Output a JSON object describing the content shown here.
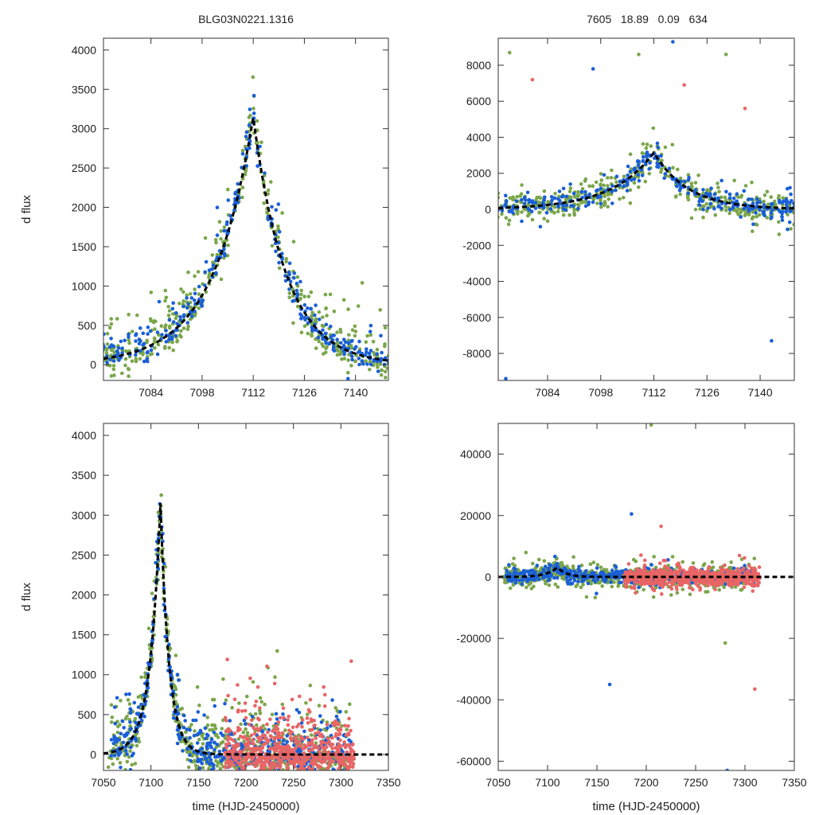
{
  "figure": {
    "left_title": "BLG03N0221.1316",
    "right_title": "7605   18.89   0.09   634"
  },
  "colors": {
    "green": "#7ba64a",
    "blue": "#1a5fd6",
    "red": "#e86565",
    "model": "#000000"
  },
  "chart_data": [
    {
      "id": "top-left",
      "type": "scatter",
      "title": "BLG03N0221.1316",
      "xlabel": "",
      "ylabel": "d flux",
      "xlim": [
        7071,
        7149
      ],
      "ylim": [
        -200,
        4150
      ],
      "xticks": [
        7084,
        7098,
        7112,
        7126,
        7140
      ],
      "yticks": [
        0,
        500,
        1000,
        1500,
        2000,
        2500,
        3000,
        3500,
        4000
      ],
      "peak_t": 7112,
      "peak_flux": 3150,
      "series": [
        {
          "name": "green",
          "color": "green",
          "noise": 330,
          "seed": 11
        },
        {
          "name": "blue",
          "color": "blue",
          "noise": 240,
          "seed": 23
        }
      ],
      "model": {
        "type": "dashed-line",
        "t0": 7112,
        "peak": 3150,
        "tau_rise": 11,
        "tau_fall": 9
      }
    },
    {
      "id": "top-right",
      "type": "scatter",
      "title": "7605   18.89   0.09   634",
      "xlabel": "",
      "ylabel": "",
      "xlim": [
        7071,
        7149
      ],
      "ylim": [
        -9500,
        9500
      ],
      "xticks": [
        7084,
        7098,
        7112,
        7126,
        7140
      ],
      "yticks": [
        -8000,
        -6000,
        -4000,
        -2000,
        0,
        2000,
        4000,
        6000,
        8000
      ],
      "peak_t": 7112,
      "peak_flux": 3150,
      "series": [
        {
          "name": "green",
          "color": "green",
          "noise": 650,
          "seed": 37
        },
        {
          "name": "blue",
          "color": "blue",
          "noise": 500,
          "seed": 41
        }
      ],
      "outliers": [
        [
          7073,
          -9400
        ],
        [
          7074,
          8700
        ],
        [
          7080,
          7200
        ],
        [
          7096,
          7800
        ],
        [
          7108,
          8600
        ],
        [
          7120,
          6900
        ],
        [
          7117,
          9300
        ],
        [
          7131,
          8600
        ],
        [
          7136,
          5600
        ],
        [
          7143,
          -7300
        ]
      ],
      "model": {
        "type": "dashed-line",
        "t0": 7112,
        "peak": 3150,
        "tau_rise": 11,
        "tau_fall": 9
      }
    },
    {
      "id": "bottom-left",
      "type": "scatter",
      "title": "",
      "xlabel": "time (HJD-2450000)",
      "ylabel": "d flux",
      "xlim": [
        7050,
        7350
      ],
      "ylim": [
        -200,
        4150
      ],
      "xticks": [
        7050,
        7100,
        7150,
        7200,
        7250,
        7300,
        7350
      ],
      "yticks": [
        0,
        500,
        1000,
        1500,
        2000,
        2500,
        3000,
        3500,
        4000
      ],
      "peak_t": 7110,
      "peak_flux": 3150,
      "series": [
        {
          "name": "green",
          "color": "green",
          "noise": 400,
          "seed": 53
        },
        {
          "name": "blue",
          "color": "blue",
          "noise": 350,
          "seed": 67
        },
        {
          "name": "red",
          "color": "red",
          "noise": 420,
          "seed": 71
        }
      ],
      "model": {
        "type": "dashed-line",
        "t0": 7110,
        "peak": 3150,
        "tau_rise": 11,
        "tau_fall": 9
      }
    },
    {
      "id": "bottom-right",
      "type": "scatter",
      "title": "",
      "xlabel": "time (HJD-2450000)",
      "ylabel": "",
      "xlim": [
        7050,
        7350
      ],
      "ylim": [
        -63000,
        50000
      ],
      "xticks": [
        7050,
        7100,
        7150,
        7200,
        7250,
        7300,
        7350
      ],
      "yticks": [
        -60000,
        -40000,
        -20000,
        0,
        20000,
        40000
      ],
      "peak_t": 7110,
      "peak_flux": 3150,
      "series": [
        {
          "name": "green",
          "color": "green",
          "noise": 2500,
          "seed": 83
        },
        {
          "name": "blue",
          "color": "blue",
          "noise": 2000,
          "seed": 89
        },
        {
          "name": "red",
          "color": "red",
          "noise": 2300,
          "seed": 97
        }
      ],
      "outliers": [
        [
          7163,
          -35000
        ],
        [
          7280,
          -21500
        ],
        [
          7310,
          -36500
        ],
        [
          7282,
          -63000
        ],
        [
          7205,
          49500
        ],
        [
          7215,
          16500
        ],
        [
          7185,
          20500
        ]
      ],
      "model": {
        "type": "dashed-line",
        "t0": 7110,
        "peak": 3150,
        "tau_rise": 11,
        "tau_fall": 9
      }
    }
  ]
}
